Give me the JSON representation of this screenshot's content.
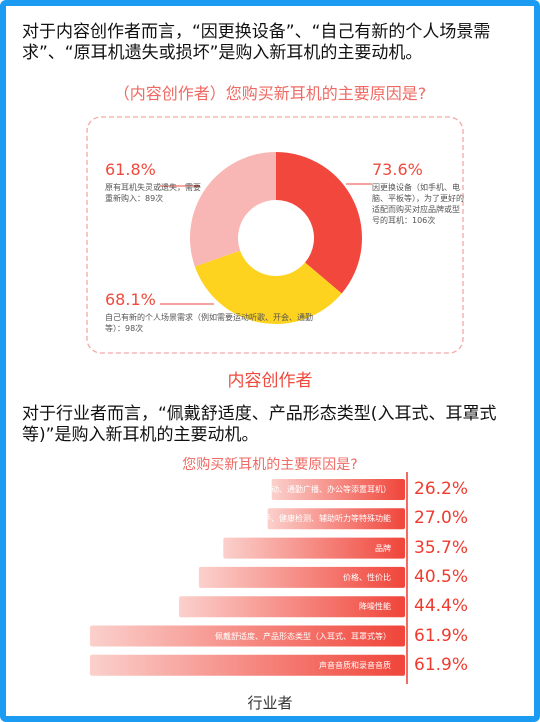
{
  "intro_1": "对于内容创作者而言，“因更换设备”、“自己有新的个人场景需求”、“原耳机遗失或损坏”是购入新耳机的主要动机。",
  "intro_2": "对于行业者而言，“佩戴舒适度、产品形态类型(入耳式、耳罩式等)”是购入新耳机的主要动机。",
  "chart_data": [
    {
      "type": "pie",
      "donut": true,
      "title": "（内容创作者）您购买新耳机的主要原因是?",
      "categories": [
        "因更换设备（如手机、电脑、平板等），为了更好的适配而购买对应品牌或型号的耳机：106次",
        "自己有新的个人场景需求（例如需要运动听歌、开会、通勤等）：98次",
        "原有耳机失灵或遗失，需要重新购入：89次"
      ],
      "values": [
        73.6,
        68.1,
        61.8
      ],
      "value_labels": [
        "73.6%",
        "68.1%",
        "61.8%"
      ],
      "colors": [
        "#f2473c",
        "#fdd320",
        "#f8b6b4"
      ],
      "caption": "内容创作者"
    },
    {
      "type": "bar",
      "orientation": "horizontal",
      "title": "您购买新耳机的主要原因是?",
      "categories": [
        "应用场景（如为运动、通勤广播、办公等添置耳机）",
        "AI助手、健康检测、辅助听力等特殊功能",
        "品牌",
        "价格、性价比",
        "降噪性能",
        "佩戴舒适度、产品形态类型（入耳式、耳罩式等）",
        "声音音质和录音音质"
      ],
      "values": [
        26.2,
        27.0,
        35.7,
        40.5,
        44.4,
        61.9,
        61.9
      ],
      "value_labels": [
        "26.2%",
        "27.0%",
        "35.7%",
        "40.5%",
        "44.4%",
        "61.9%",
        "61.9%"
      ],
      "color_start": "#fbd0cc",
      "color": "#f0453a",
      "caption": "行业者"
    }
  ]
}
